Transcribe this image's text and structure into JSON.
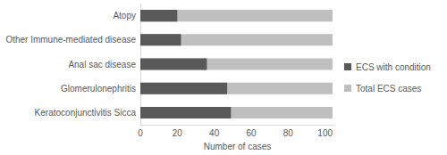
{
  "chart_data": {
    "type": "bar",
    "orientation": "horizontal",
    "xlabel": "Number of cases",
    "categories": [
      "Atopy",
      "Other Immune-mediated disease",
      "Anal sac disease",
      "Glomerulonephritis",
      "Keratoconjunctivitis Sicca"
    ],
    "series": [
      {
        "name": "ECS with condition",
        "color": "#595959",
        "values": [
          20,
          22,
          36,
          47,
          49
        ]
      },
      {
        "name": "Total ECS cases",
        "color": "#bfbfbf",
        "values": [
          104,
          104,
          104,
          104,
          104
        ]
      }
    ],
    "xlim": [
      0,
      105
    ],
    "xticks": [
      0,
      20,
      40,
      60,
      80,
      100
    ],
    "grid": false,
    "legend": "right"
  }
}
